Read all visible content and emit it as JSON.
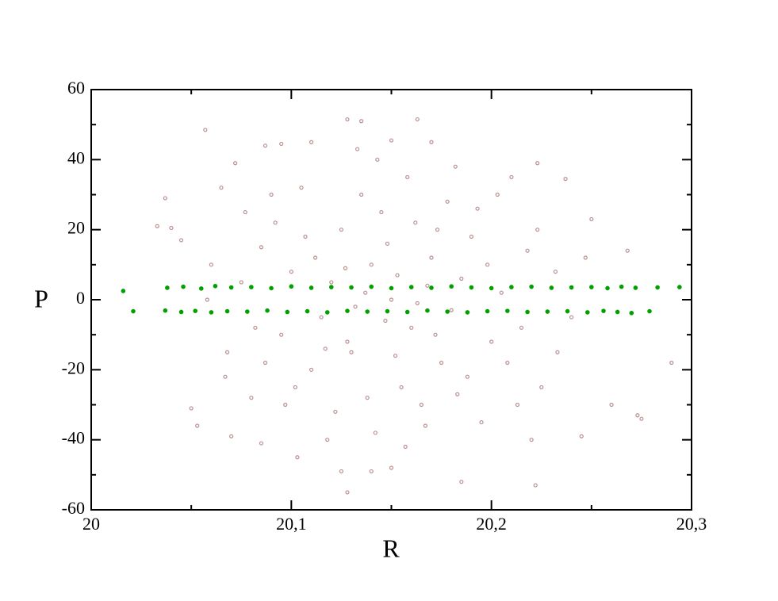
{
  "chart_data": {
    "type": "scatter",
    "x_label": "R",
    "y_label": "P",
    "xlim": [
      20,
      20.3
    ],
    "ylim": [
      -60,
      60
    ],
    "xticks": [
      20,
      {
        "value": 20.1,
        "label": "20,1"
      },
      {
        "value": 20.2,
        "label": "20,2"
      },
      {
        "value": 20.3,
        "label": "20,3"
      }
    ],
    "yticks": [
      -60,
      -40,
      -20,
      0,
      20,
      40,
      60
    ],
    "xminorticks": [
      20.05,
      20.15,
      20.25
    ],
    "yminorticks": [
      -50,
      -30,
      -10,
      10,
      30,
      50
    ],
    "series": [
      {
        "color": "#bc8f8f",
        "x": [
          20.057,
          20.128,
          20.135,
          20.163,
          20.087,
          20.095,
          20.11,
          20.15,
          20.17,
          20.033,
          20.037,
          20.04,
          20.045,
          20.223,
          20.237,
          20.29,
          20.273,
          20.275,
          20.05,
          20.053,
          20.128,
          20.222,
          20.185,
          20.125,
          20.14,
          20.07,
          20.085,
          20.103,
          20.245,
          20.26,
          20.268,
          20.25,
          20.065,
          20.072,
          20.15,
          20.14,
          20.16,
          20.13,
          20.17,
          20.12,
          20.18,
          20.11,
          20.19,
          20.1,
          20.2,
          20.145,
          20.155,
          20.135,
          20.165,
          20.125,
          20.175,
          20.115,
          20.185,
          20.095,
          20.205,
          20.085,
          20.215,
          20.142,
          20.158,
          20.132,
          20.168,
          20.148,
          20.152,
          20.138,
          20.162,
          20.122,
          20.178,
          20.112,
          20.188,
          20.102,
          20.198,
          20.092,
          20.208,
          20.082,
          20.218,
          20.075,
          20.225,
          20.068,
          20.232,
          20.06,
          20.24,
          20.105,
          20.195,
          20.118,
          20.182,
          20.143,
          20.157,
          20.128,
          20.172,
          20.147,
          20.153,
          20.137,
          20.163,
          20.127,
          20.173,
          20.117,
          20.183,
          20.107,
          20.193,
          20.097,
          20.203,
          20.087,
          20.213,
          20.077,
          20.223,
          20.067,
          20.233,
          20.058,
          20.247,
          20.08,
          20.22,
          20.09,
          20.21,
          20.15,
          20.133,
          20.167
        ],
        "y": [
          48.5,
          51.5,
          51,
          51.5,
          44,
          44.5,
          45,
          45.5,
          45,
          21,
          29,
          20.5,
          17,
          39,
          34.5,
          -18,
          -33,
          -34,
          -31,
          -36,
          -55,
          -53,
          -52,
          -49,
          -49,
          -39,
          -41,
          -45,
          -39,
          -30,
          14,
          23,
          32,
          39,
          0,
          10,
          -8,
          -15,
          12,
          5,
          -3,
          -20,
          18,
          8,
          -12,
          25,
          -25,
          30,
          -30,
          20,
          -18,
          -5,
          6,
          -10,
          2,
          15,
          -8,
          -38,
          35,
          -2,
          4,
          16,
          -16,
          -28,
          22,
          -32,
          28,
          12,
          -22,
          -25,
          10,
          22,
          -18,
          -8,
          14,
          5,
          -25,
          -15,
          8,
          10,
          -5,
          32,
          -35,
          -40,
          38,
          40,
          -42,
          -12,
          -10,
          -6,
          7,
          2,
          -1,
          9,
          20,
          -14,
          -27,
          18,
          26,
          -30,
          30,
          -18,
          -30,
          25,
          20,
          -22,
          -15,
          0,
          12,
          -28,
          -40,
          30,
          35,
          -48,
          43,
          -36
        ]
      },
      {
        "color": "#00a000",
        "x": [
          20.016,
          20.038,
          20.046,
          20.055,
          20.062,
          20.07,
          20.08,
          20.09,
          20.1,
          20.11,
          20.12,
          20.13,
          20.14,
          20.15,
          20.16,
          20.17,
          20.18,
          20.19,
          20.2,
          20.21,
          20.22,
          20.23,
          20.24,
          20.25,
          20.258,
          20.265,
          20.272,
          20.283,
          20.294,
          20.021,
          20.037,
          20.045,
          20.052,
          20.06,
          20.068,
          20.078,
          20.088,
          20.098,
          20.108,
          20.118,
          20.128,
          20.138,
          20.148,
          20.158,
          20.168,
          20.178,
          20.188,
          20.198,
          20.208,
          20.218,
          20.228,
          20.238,
          20.248,
          20.256,
          20.263,
          20.27,
          20.279
        ],
        "y": [
          2.5,
          3.4,
          3.7,
          3.2,
          3.9,
          3.5,
          3.6,
          3.3,
          3.8,
          3.4,
          3.6,
          3.5,
          3.7,
          3.3,
          3.6,
          3.4,
          3.8,
          3.5,
          3.3,
          3.6,
          3.7,
          3.4,
          3.5,
          3.6,
          3.3,
          3.7,
          3.4,
          3.5,
          3.6,
          -3.3,
          -3.1,
          -3.5,
          -3.2,
          -3.6,
          -3.3,
          -3.4,
          -3.1,
          -3.5,
          -3.3,
          -3.6,
          -3.2,
          -3.4,
          -3.3,
          -3.5,
          -3.1,
          -3.4,
          -3.6,
          -3.3,
          -3.2,
          -3.5,
          -3.4,
          -3.3,
          -3.6,
          -3.2,
          -3.5,
          -3.8,
          -3.3
        ]
      }
    ]
  }
}
